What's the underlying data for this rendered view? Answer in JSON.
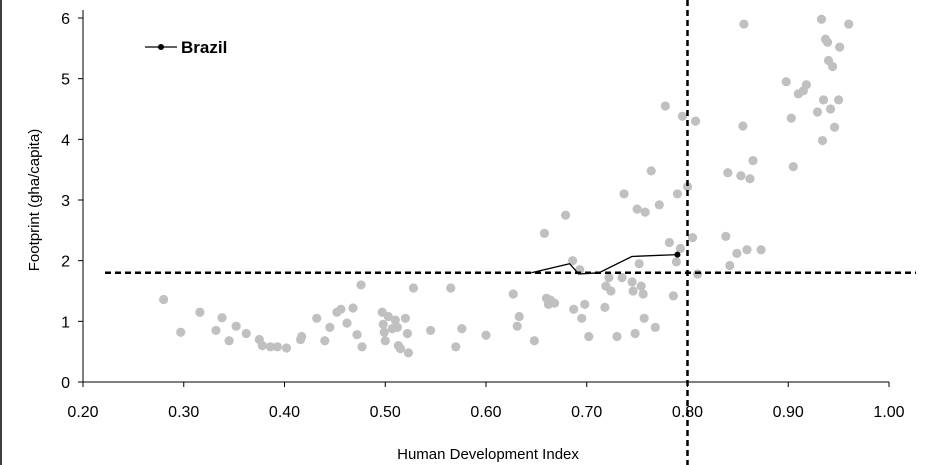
{
  "chart_data": {
    "type": "scatter",
    "title": "",
    "xlabel": "Human Development Index",
    "ylabel": "Footprint  (gha/capita)",
    "xlim": [
      0.2,
      1.0
    ],
    "ylim": [
      0,
      6
    ],
    "x_ticks": [
      "0.20",
      "0.30",
      "0.40",
      "0.50",
      "0.60",
      "0.70",
      "0.80",
      "0.90",
      "1.00"
    ],
    "y_ticks": [
      "0",
      "1",
      "2",
      "3",
      "4",
      "5",
      "6"
    ],
    "grid": false,
    "legend_position": "top-left",
    "colors": {
      "countries": "#c0c0c0",
      "brazil": "#000000",
      "threshold": "#000000"
    },
    "thresholds": {
      "hdi": 0.8,
      "footprint": 1.8
    },
    "brazil": {
      "name": "Brazil",
      "x": [
        0.645,
        0.683,
        0.692,
        0.712,
        0.745,
        0.79
      ],
      "y": [
        1.8,
        1.95,
        1.78,
        1.8,
        2.07,
        2.1
      ]
    },
    "countries": {
      "x": [
        0.28,
        0.297,
        0.316,
        0.332,
        0.338,
        0.345,
        0.352,
        0.362,
        0.375,
        0.378,
        0.386,
        0.393,
        0.402,
        0.416,
        0.417,
        0.432,
        0.44,
        0.445,
        0.452,
        0.456,
        0.462,
        0.468,
        0.472,
        0.476,
        0.477,
        0.497,
        0.498,
        0.499,
        0.5,
        0.503,
        0.507,
        0.51,
        0.512,
        0.513,
        0.515,
        0.52,
        0.522,
        0.523,
        0.528,
        0.545,
        0.565,
        0.57,
        0.576,
        0.6,
        0.627,
        0.631,
        0.633,
        0.648,
        0.658,
        0.66,
        0.662,
        0.664,
        0.668,
        0.679,
        0.686,
        0.687,
        0.693,
        0.695,
        0.698,
        0.702,
        0.718,
        0.719,
        0.722,
        0.724,
        0.73,
        0.735,
        0.737,
        0.745,
        0.746,
        0.748,
        0.75,
        0.752,
        0.754,
        0.756,
        0.757,
        0.758,
        0.764,
        0.768,
        0.772,
        0.778,
        0.782,
        0.786,
        0.789,
        0.79,
        0.793,
        0.795,
        0.8,
        0.805,
        0.808,
        0.81,
        0.838,
        0.84,
        0.842,
        0.849,
        0.853,
        0.855,
        0.856,
        0.859,
        0.862,
        0.865,
        0.873,
        0.898,
        0.903,
        0.905,
        0.91,
        0.915,
        0.918,
        0.929,
        0.933,
        0.934,
        0.935,
        0.937,
        0.939,
        0.94,
        0.942,
        0.944,
        0.946,
        0.95,
        0.951,
        0.96
      ],
      "y": [
        1.36,
        0.82,
        1.15,
        0.85,
        1.06,
        0.68,
        0.92,
        0.8,
        0.7,
        0.6,
        0.58,
        0.58,
        0.56,
        0.7,
        0.75,
        1.05,
        0.68,
        0.9,
        1.15,
        1.2,
        0.97,
        1.22,
        0.78,
        1.6,
        0.58,
        1.15,
        0.95,
        0.82,
        0.68,
        1.08,
        0.88,
        1.02,
        0.9,
        0.6,
        0.55,
        1.05,
        0.8,
        0.48,
        1.55,
        0.85,
        1.55,
        0.58,
        0.88,
        0.77,
        1.45,
        0.92,
        1.08,
        0.68,
        2.45,
        1.38,
        1.28,
        1.35,
        1.3,
        2.75,
        2.0,
        1.2,
        1.85,
        1.05,
        1.28,
        0.75,
        1.23,
        1.58,
        1.72,
        1.5,
        0.75,
        1.72,
        3.1,
        1.65,
        1.5,
        0.8,
        2.85,
        1.95,
        1.58,
        1.45,
        1.05,
        2.8,
        3.48,
        0.9,
        2.92,
        4.55,
        2.3,
        1.42,
        1.98,
        3.1,
        2.2,
        4.38,
        3.22,
        2.38,
        4.3,
        1.78,
        2.4,
        3.45,
        1.92,
        2.12,
        3.4,
        4.22,
        5.9,
        2.18,
        3.35,
        3.65,
        2.18,
        4.95,
        4.35,
        3.55,
        4.75,
        4.8,
        4.9,
        4.45,
        5.98,
        3.98,
        4.65,
        5.65,
        5.6,
        5.3,
        4.5,
        5.2,
        4.2,
        4.65,
        5.52,
        5.9
      ]
    }
  }
}
